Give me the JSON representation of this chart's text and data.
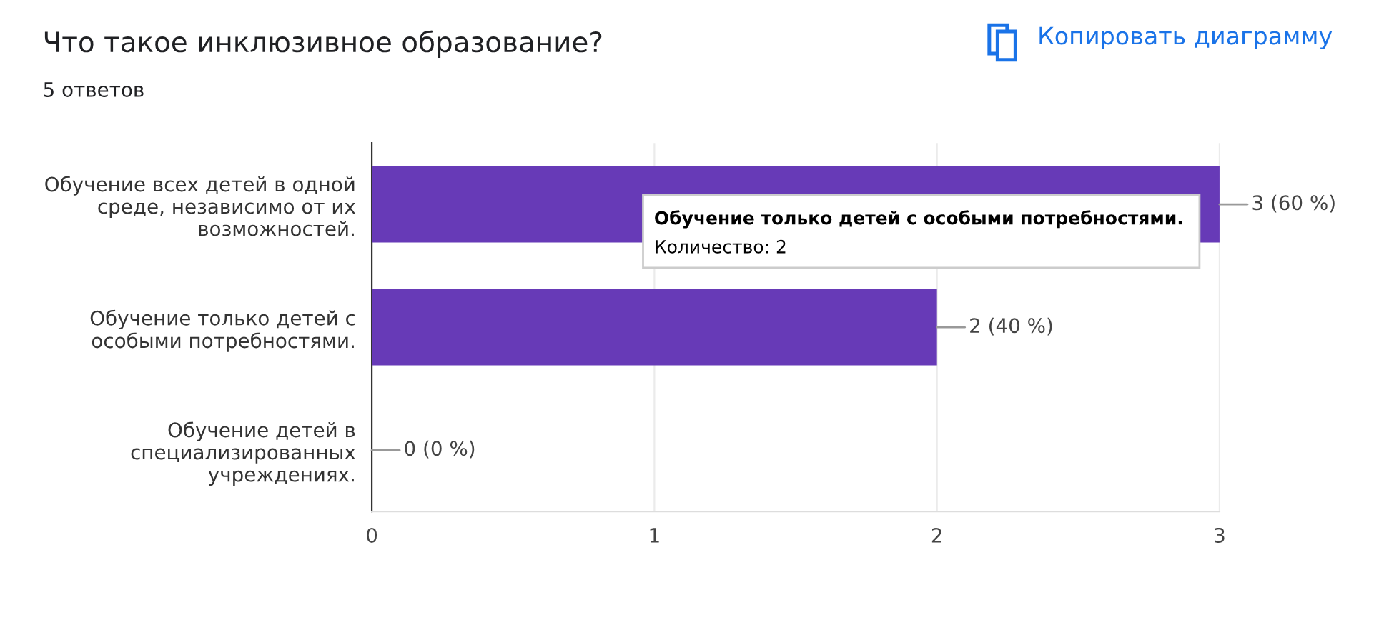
{
  "chart_data": {
    "type": "bar",
    "orientation": "horizontal",
    "title": "Что такое инклюзивное образование?",
    "subtitle": "5 ответов",
    "categories": [
      "Обучение всех детей в одной\nсреде, независимо от их\nвозможностей.",
      "Обучение только детей с\nособыми потребностями.",
      "Обучение детей в\nспециализированных\nучреждениях."
    ],
    "values": [
      3,
      2,
      0
    ],
    "color": "#673ab7",
    "value_labels": [
      "3 (60 %)",
      "2 (40 %)",
      "0 (0 %)"
    ],
    "xlim": [
      0,
      3
    ],
    "xticks": [
      0,
      1,
      2,
      3
    ],
    "grid": "x",
    "legend": false,
    "annotations": [
      "Обучение только детей с особыми потребностями.",
      "Количество: 2",
      "Копировать диаграмму"
    ]
  }
}
